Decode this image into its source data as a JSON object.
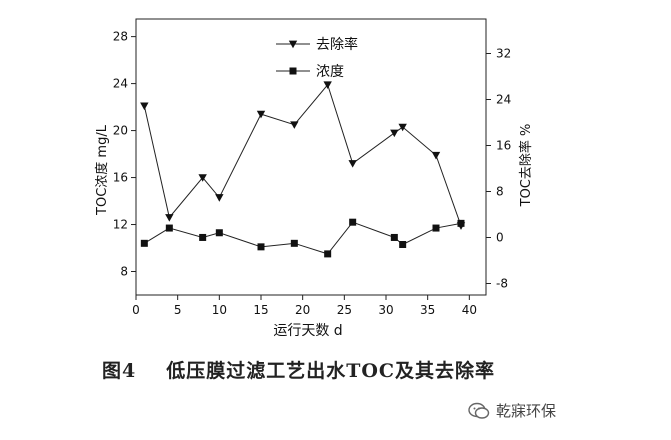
{
  "chart_data": {
    "type": "line",
    "xlabel": "运行天数 d",
    "ylabel_left": "TOC浓度 mg/L",
    "ylabel_right": "TOC去除率 %",
    "xlim": [
      0,
      42
    ],
    "ylim_left": [
      6,
      29.5
    ],
    "ylim_right": [
      -10,
      38
    ],
    "xticks": [
      0,
      5,
      10,
      15,
      20,
      25,
      30,
      35,
      40
    ],
    "yticks_left": [
      8,
      12,
      16,
      20,
      24,
      28
    ],
    "yticks_right": [
      -8,
      0,
      8,
      16,
      24,
      32
    ],
    "legend_position": "top-center",
    "grid": false,
    "x": [
      1,
      4,
      8,
      10,
      15,
      19,
      23,
      26,
      31,
      32,
      36,
      39
    ],
    "series": [
      {
        "name": "去除率",
        "marker": "triangle-down",
        "axis": "left",
        "values": [
          22.1,
          12.6,
          16.0,
          14.3,
          21.4,
          20.5,
          23.9,
          17.2,
          19.8,
          20.3,
          17.9,
          11.9
        ]
      },
      {
        "name": "浓度",
        "marker": "square",
        "axis": "left",
        "values": [
          10.4,
          11.7,
          10.9,
          11.3,
          10.1,
          10.4,
          9.5,
          12.2,
          10.9,
          10.3,
          11.7,
          12.1
        ]
      }
    ]
  },
  "caption": {
    "number": "图4",
    "text": "低压膜过滤工艺出水TOC及其去除率"
  },
  "watermark": {
    "text": "乾寐环保"
  }
}
